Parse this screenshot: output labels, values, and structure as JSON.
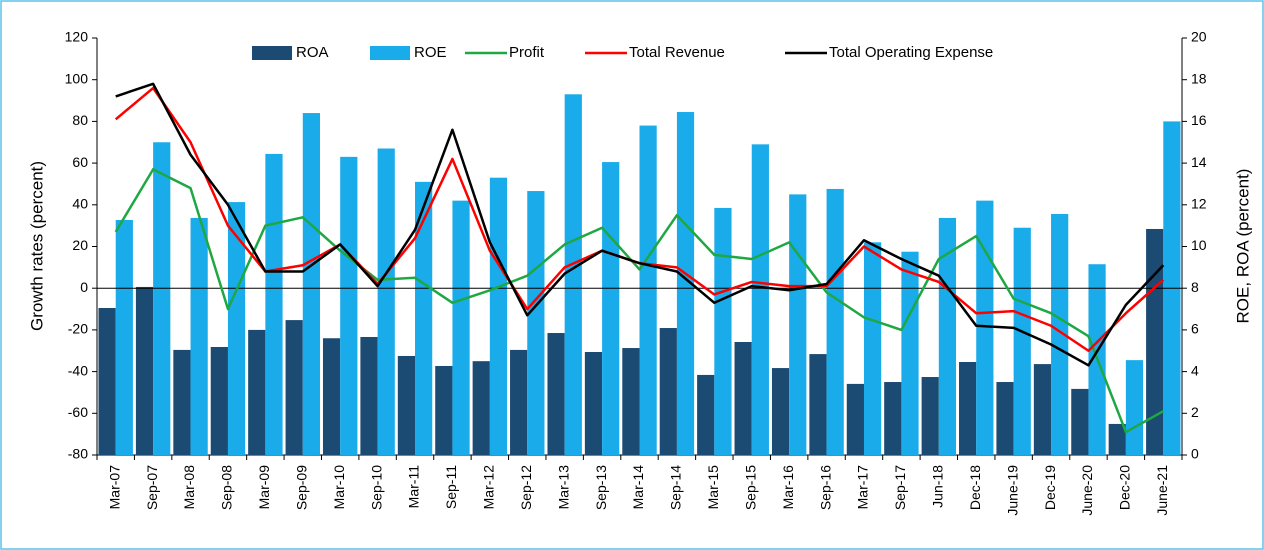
{
  "chart_data": {
    "type": "bar",
    "categories": [
      "Mar-07",
      "Sep-07",
      "Mar-08",
      "Sep-08",
      "Mar-09",
      "Sep-09",
      "Mar-10",
      "Sep-10",
      "Mar-11",
      "Sep-11",
      "Mar-12",
      "Sep-12",
      "Mar-13",
      "Sep-13",
      "Mar-14",
      "Sep-14",
      "Mar-15",
      "Sep-15",
      "Mar-16",
      "Sep-16",
      "Mar-17",
      "Sep-17",
      "Jun-18",
      "Dec-18",
      "June-19",
      "Dec-19",
      "June-20",
      "Dec-20",
      "June-21"
    ],
    "series": [
      {
        "name": "ROA",
        "type": "bar",
        "axis": "y2",
        "color": "#1b4a72",
        "values": [
          7.05,
          8.06,
          5.04,
          5.18,
          6.0,
          6.47,
          5.6,
          5.66,
          4.75,
          4.27,
          4.5,
          5.04,
          5.85,
          4.94,
          5.13,
          6.09,
          3.84,
          5.42,
          4.17,
          4.84,
          3.41,
          3.5,
          3.74,
          4.46,
          3.5,
          4.36,
          3.17,
          1.49,
          10.84
        ]
      },
      {
        "name": "ROE",
        "type": "bar",
        "axis": "y2",
        "color": "#1aabeb",
        "values": [
          11.27,
          15.0,
          11.37,
          12.13,
          14.44,
          16.4,
          14.3,
          14.7,
          13.1,
          12.2,
          13.3,
          12.66,
          17.3,
          14.05,
          15.8,
          16.45,
          11.85,
          14.9,
          12.5,
          12.76,
          10.2,
          9.75,
          11.37,
          12.2,
          10.9,
          11.56,
          9.15,
          4.55,
          16.0
        ]
      },
      {
        "name": "Profit",
        "type": "line",
        "color": "#1ea843",
        "values": [
          27,
          57,
          48,
          -10,
          30,
          34,
          18,
          4,
          5,
          -7,
          -1,
          6,
          21,
          29,
          9,
          35,
          16,
          14,
          22,
          -2,
          -14,
          -20,
          14,
          25,
          -5,
          -12,
          -23,
          -69,
          -59
        ]
      },
      {
        "name": "Total Revenue",
        "type": "line",
        "color": "#ff0000",
        "values": [
          81,
          96,
          70,
          30,
          8,
          11,
          21,
          2,
          24,
          62,
          18,
          -10,
          10,
          18,
          12,
          10,
          -3,
          3,
          1,
          1,
          20,
          9,
          3,
          -12,
          -11,
          -18,
          -30,
          -12,
          4
        ]
      },
      {
        "name": "Total Operating Expense",
        "type": "line",
        "color": "#000000",
        "values": [
          92,
          98,
          64,
          40,
          8,
          8,
          21,
          1,
          28,
          76,
          22,
          -13,
          7,
          18,
          12,
          8,
          -7,
          1,
          -1,
          2,
          23,
          14,
          6,
          -18,
          -19,
          -27,
          -37,
          -8,
          11
        ]
      }
    ],
    "y_label": "Growth rates (percent)",
    "y2_label": "ROE, ROA (percent)",
    "ylim": [
      -80,
      120
    ],
    "yticks": [
      -80,
      -60,
      -40,
      -20,
      0,
      20,
      40,
      60,
      80,
      100,
      120
    ],
    "y2lim": [
      0,
      20
    ],
    "y2ticks": [
      0,
      2,
      4,
      6,
      8,
      10,
      12,
      14,
      16,
      18,
      20
    ],
    "legend": "top"
  }
}
